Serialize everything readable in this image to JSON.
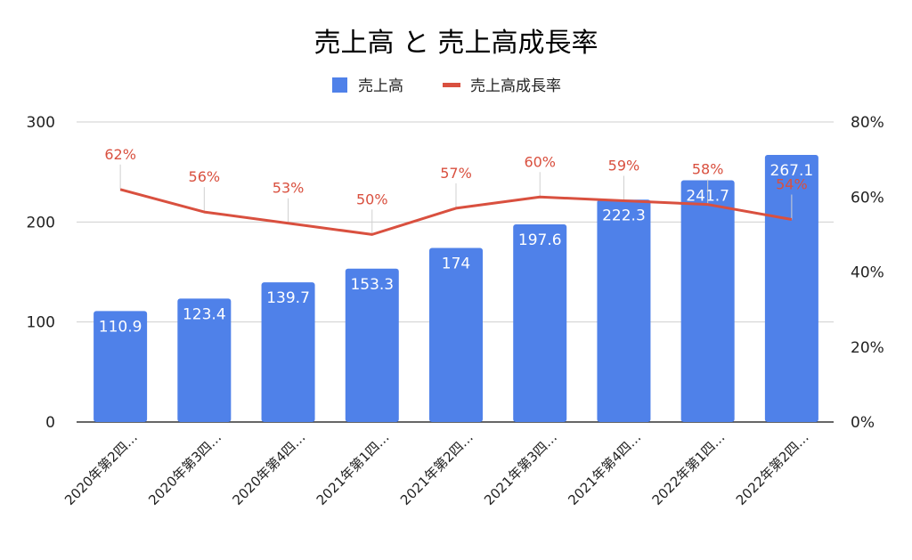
{
  "chart_data": {
    "type": "bar",
    "title": "売上高 と 売上高成長率",
    "legend_position": "top",
    "grid": true,
    "categories": [
      "2020年第2四…",
      "2020年第3四…",
      "2020年第4四…",
      "2021年第1四…",
      "2021年第2四…",
      "2021年第3四…",
      "2021年第4四…",
      "2022年第1四…",
      "2022年第2四…"
    ],
    "series": [
      {
        "name": "売上高",
        "type": "bar",
        "axis": "left",
        "color": "#4f81e9",
        "values": [
          110.9,
          123.4,
          139.7,
          153.3,
          174,
          197.6,
          222.3,
          241.7,
          267.1
        ],
        "labels": [
          "110.9",
          "123.4",
          "139.7",
          "153.3",
          "174",
          "197.6",
          "222.3",
          "241.7",
          "267.1"
        ]
      },
      {
        "name": "売上高成長率",
        "type": "line",
        "axis": "right",
        "color": "#d9503f",
        "values": [
          62,
          56,
          53,
          50,
          57,
          60,
          59,
          58,
          54
        ],
        "labels": [
          "62%",
          "56%",
          "53%",
          "50%",
          "57%",
          "60%",
          "59%",
          "58%",
          "54%"
        ]
      }
    ],
    "y_left": {
      "min": 0,
      "max": 300,
      "ticks": [
        "0",
        "100",
        "200",
        "300"
      ]
    },
    "y_right": {
      "min": 0,
      "max": 80,
      "ticks": [
        "0%",
        "20%",
        "40%",
        "60%",
        "80%"
      ]
    }
  }
}
